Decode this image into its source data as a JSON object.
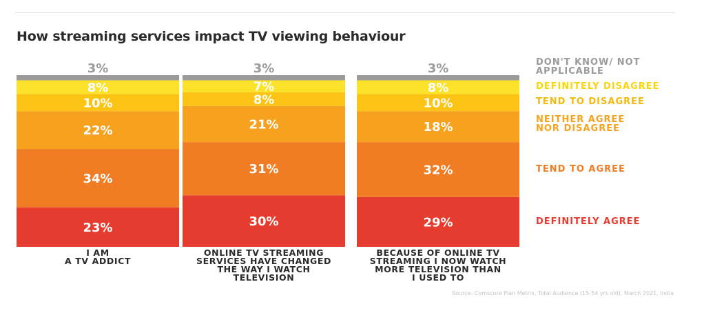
{
  "chart_data": {
    "type": "bar",
    "stacked": true,
    "percent": true,
    "title": "How streaming services impact TV viewing behaviour",
    "categories": [
      "I AM\nA TV ADDICT",
      "ONLINE TV STREAMING\nSERVICES HAVE CHANGED\nTHE WAY I WATCH\nTELEVISION",
      "BECAUSE OF ONLINE TV\nSTREAMING I NOW WATCH\nMORE TELEVISION THAN\nI USED TO"
    ],
    "series": [
      {
        "name": "DEFINITELY AGREE",
        "color": "#e63c2f",
        "values": [
          23,
          30,
          29
        ]
      },
      {
        "name": "TEND TO AGREE",
        "color": "#f07d24",
        "values": [
          34,
          31,
          32
        ]
      },
      {
        "name": "NEITHER AGREE NOR DISAGREE",
        "color": "#f6a21f",
        "values": [
          22,
          21,
          18
        ]
      },
      {
        "name": "TEND TO DISAGREE",
        "color": "#fbc414",
        "values": [
          10,
          8,
          10
        ]
      },
      {
        "name": "DEFINITELY DISAGREE",
        "color": "#fde22a",
        "values": [
          8,
          7,
          8
        ]
      },
      {
        "name": "DON'T KNOW/ NOT APPLICABLE",
        "color": "#9b9b9b",
        "values": [
          3,
          3,
          3
        ]
      }
    ],
    "value_suffix": "%",
    "legend_position": "right",
    "source": "Source: Comscore Plan Metrix, Total Audience (15-54 yrs old), March 2021, India"
  }
}
